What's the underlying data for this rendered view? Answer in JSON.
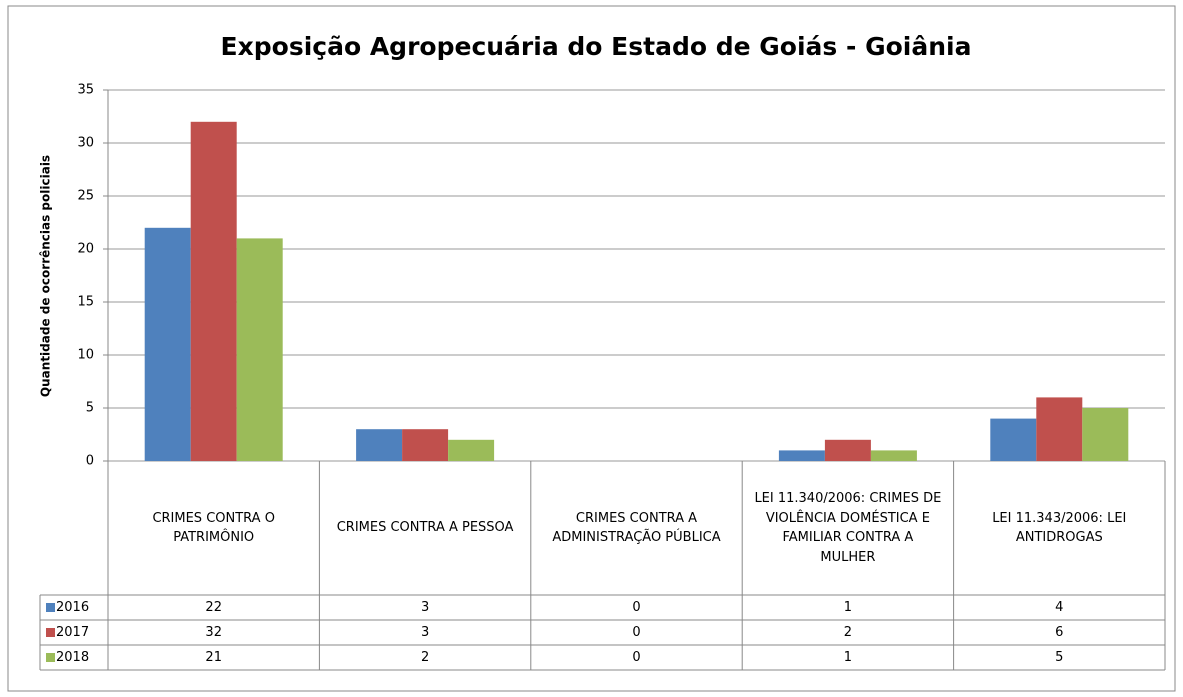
{
  "chart_data": {
    "type": "bar",
    "title": "Exposição Agropecuária do Estado de Goiás - Goiânia",
    "y_label": "Quantidade de ocorrências policiais",
    "categories": [
      "CRIMES CONTRA O PATRIMÔNIO",
      "CRIMES CONTRA A PESSOA",
      "CRIMES CONTRA A ADMINISTRAÇÃO PÚBLICA",
      "LEI 11.340/2006: CRIMES DE VIOLÊNCIA DOMÉSTICA E FAMILIAR CONTRA A MULHER",
      "LEI 11.343/2006: LEI ANTIDROGAS"
    ],
    "series": [
      {
        "name": "2016",
        "color": "#4f81bd",
        "values": [
          22,
          3,
          0,
          1,
          4
        ]
      },
      {
        "name": "2017",
        "color": "#c0504d",
        "values": [
          32,
          3,
          0,
          2,
          6
        ]
      },
      {
        "name": "2018",
        "color": "#9bbb59",
        "values": [
          21,
          2,
          0,
          1,
          5
        ]
      }
    ],
    "ylim": [
      0,
      35
    ],
    "yticks": [
      0,
      5,
      10,
      15,
      20,
      25,
      30,
      35
    ],
    "grid": true,
    "data_table": true
  }
}
